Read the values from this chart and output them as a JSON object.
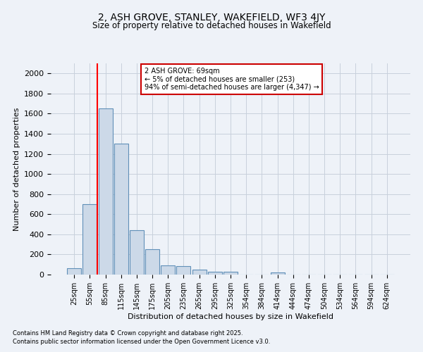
{
  "title1": "2, ASH GROVE, STANLEY, WAKEFIELD, WF3 4JY",
  "title2": "Size of property relative to detached houses in Wakefield",
  "xlabel": "Distribution of detached houses by size in Wakefield",
  "ylabel": "Number of detached properties",
  "bar_labels": [
    "25sqm",
    "55sqm",
    "85sqm",
    "115sqm",
    "145sqm",
    "175sqm",
    "205sqm",
    "235sqm",
    "265sqm",
    "295sqm",
    "325sqm",
    "354sqm",
    "384sqm",
    "414sqm",
    "444sqm",
    "474sqm",
    "504sqm",
    "534sqm",
    "564sqm",
    "594sqm",
    "624sqm"
  ],
  "bar_values": [
    65,
    700,
    1650,
    1300,
    440,
    250,
    90,
    85,
    50,
    30,
    25,
    0,
    0,
    20,
    0,
    0,
    0,
    0,
    0,
    0,
    0
  ],
  "bar_color": "#ccd9e8",
  "bar_edge_color": "#6090b8",
  "grid_color": "#c8d0dc",
  "background_color": "#eef2f8",
  "red_line_x": 1.5,
  "annotation_text": "2 ASH GROVE: 69sqm\n← 5% of detached houses are smaller (253)\n94% of semi-detached houses are larger (4,347) →",
  "annotation_box_color": "#ffffff",
  "annotation_box_edge": "#cc0000",
  "footnote1": "Contains HM Land Registry data © Crown copyright and database right 2025.",
  "footnote2": "Contains public sector information licensed under the Open Government Licence v3.0.",
  "ylim": [
    0,
    2100
  ],
  "yticks": [
    0,
    200,
    400,
    600,
    800,
    1000,
    1200,
    1400,
    1600,
    1800,
    2000
  ]
}
